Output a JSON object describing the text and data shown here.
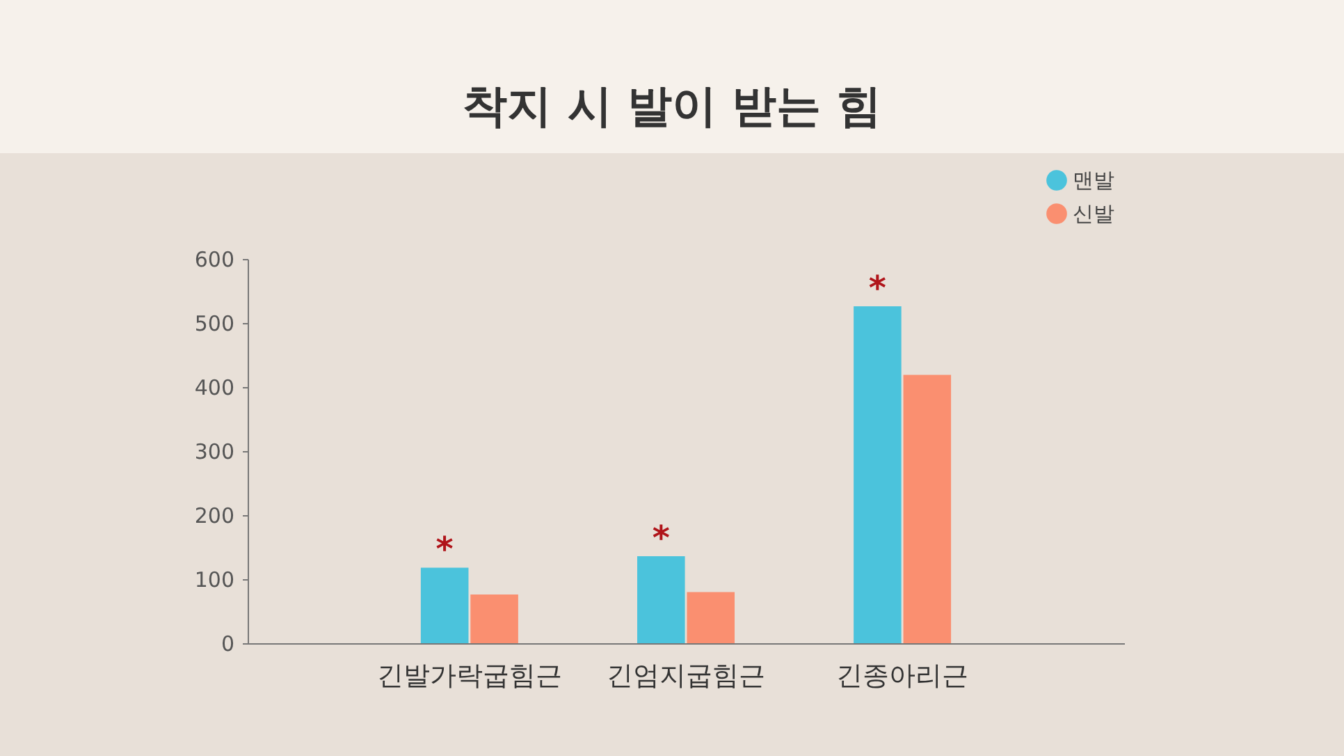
{
  "chart_data": {
    "type": "bar",
    "title": "착지 시 발이 받는 힘",
    "categories": [
      "긴발가락굽힘근",
      "긴엄지굽힘근",
      "긴종아리근"
    ],
    "series": [
      {
        "name": "맨발",
        "color": "#4bc3dc",
        "values": [
          118,
          136,
          526
        ]
      },
      {
        "name": "신발",
        "color": "#fa8f70",
        "values": [
          76,
          80,
          419
        ]
      }
    ],
    "ylim": [
      0,
      600
    ],
    "yticks": [
      0,
      100,
      200,
      300,
      400,
      500,
      600
    ],
    "grid": false,
    "legend": "top right",
    "annotations": [
      {
        "text": "*",
        "x": "긴발가락굽힘근",
        "y": 118
      },
      {
        "text": "*",
        "x": "긴엄지굽힘근",
        "y": 136
      },
      {
        "text": "*",
        "x": "긴종아리근",
        "y": 526
      }
    ]
  }
}
